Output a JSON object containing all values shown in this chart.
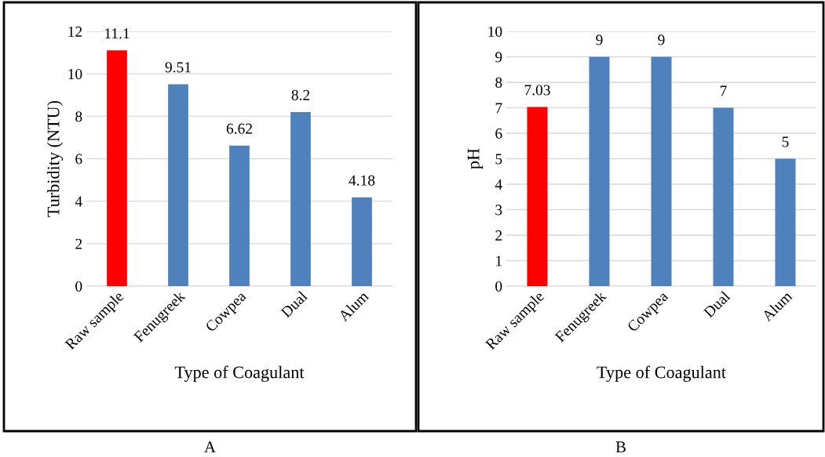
{
  "chart_data": [
    {
      "type": "bar",
      "xlabel": "Type of Coagulant",
      "ylabel": "Turbidity (NTU)",
      "categories": [
        "Raw sample",
        "Fenugreek",
        "Cowpea",
        "Dual",
        "Alum"
      ],
      "values": [
        11.1,
        9.51,
        6.62,
        8.2,
        4.18
      ],
      "colors": [
        "#ff0000",
        "#4f81bd",
        "#4f81bd",
        "#4f81bd",
        "#4f81bd"
      ],
      "ylim": [
        0,
        12
      ],
      "yticks": [
        0,
        2,
        4,
        6,
        8,
        10,
        12
      ],
      "grid": "y",
      "data_labels": true,
      "annotations": [
        "A"
      ]
    },
    {
      "type": "bar",
      "xlabel": "Type of Coagulant",
      "ylabel": "pH",
      "categories": [
        "Raw sample",
        "Fenugreek",
        "Cowpea",
        "Dual",
        "Alum"
      ],
      "values": [
        7.03,
        9,
        9,
        7,
        5
      ],
      "colors": [
        "#ff0000",
        "#4f81bd",
        "#4f81bd",
        "#4f81bd",
        "#4f81bd"
      ],
      "ylim": [
        0,
        10
      ],
      "yticks": [
        0,
        1,
        2,
        3,
        4,
        5,
        6,
        7,
        8,
        9,
        10
      ],
      "grid": "y",
      "data_labels": true,
      "annotations": [
        "B"
      ]
    }
  ]
}
